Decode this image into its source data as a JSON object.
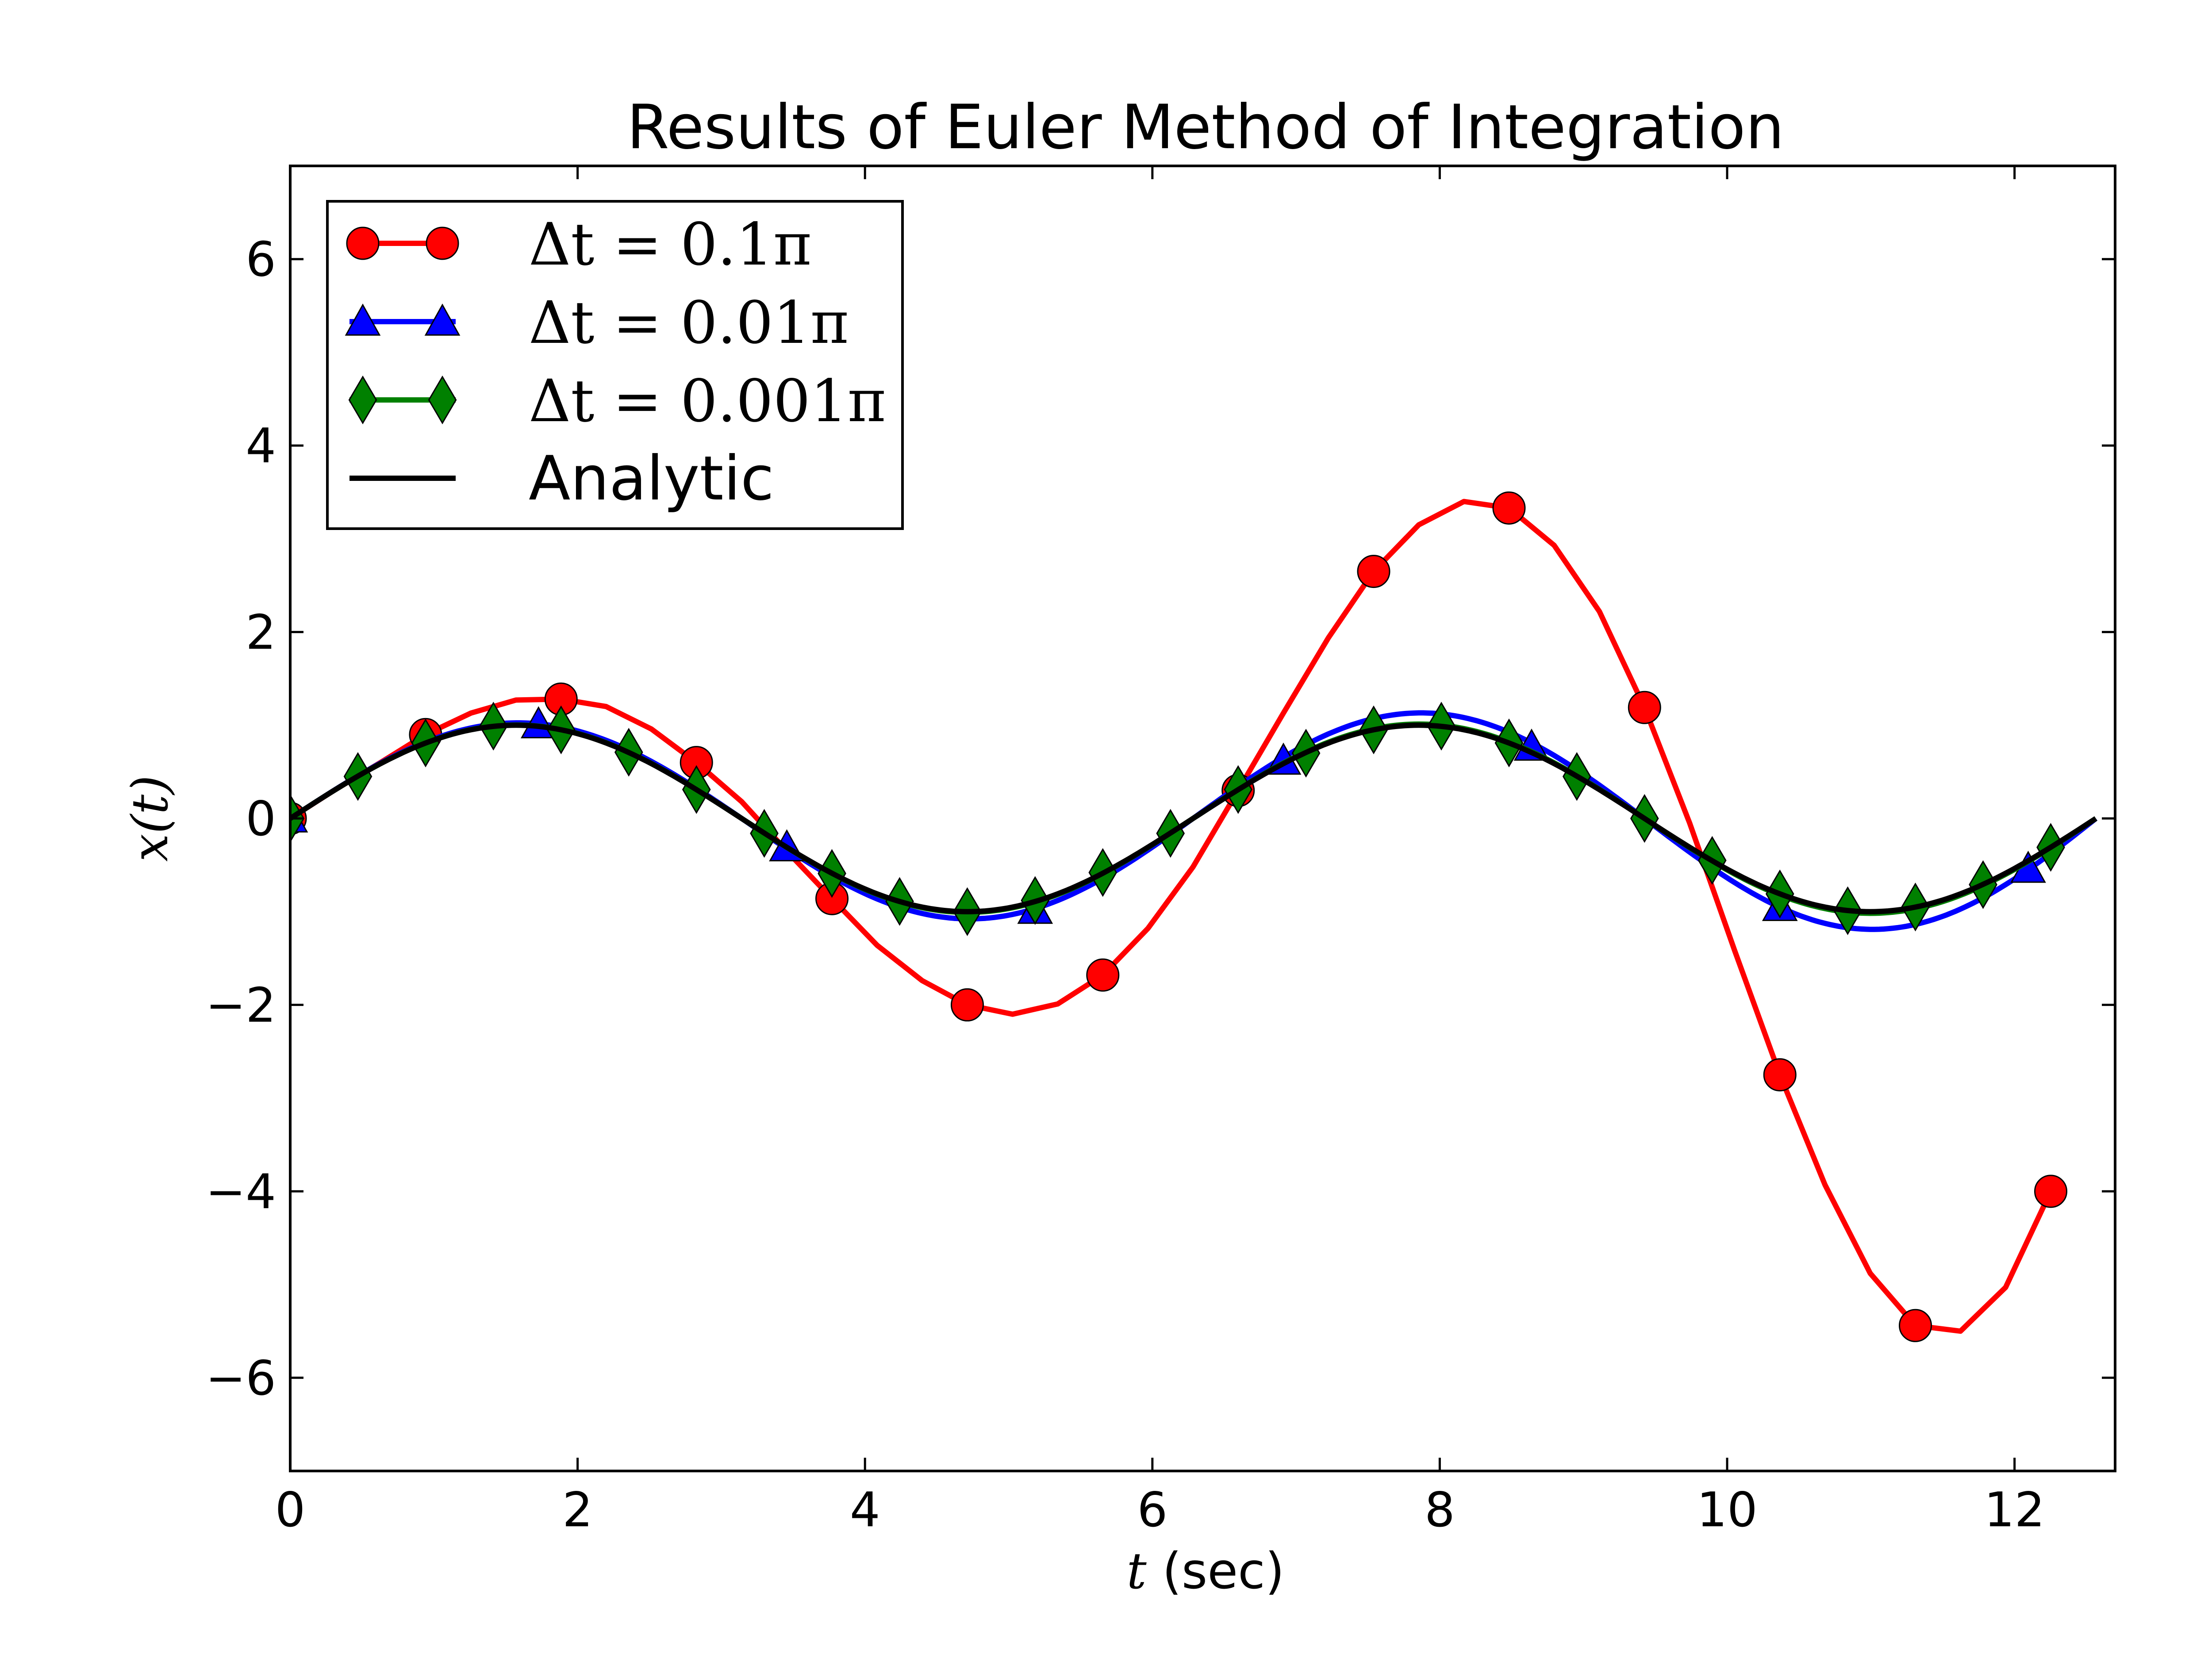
{
  "chart_data": {
    "type": "line",
    "title": "Results of Euler Method of Integration",
    "xlabel_var": "t",
    "xlabel_unit": " (sec)",
    "ylabel": "x(t)",
    "xlim": [
      0,
      12.7
    ],
    "ylim": [
      -7,
      7
    ],
    "xticks": [
      0,
      2,
      4,
      6,
      8,
      10,
      12
    ],
    "yticks": [
      -6,
      -4,
      -2,
      0,
      2,
      4,
      6
    ],
    "xtick_labels": [
      "0",
      "2",
      "4",
      "6",
      "8",
      "10",
      "12"
    ],
    "ytick_labels": [
      "−6",
      "−4",
      "−2",
      "0",
      "2",
      "4",
      "6"
    ],
    "legend_position": "top-left",
    "grid": false,
    "series": [
      {
        "name": "Δt = 0.1π",
        "color": "#ff0000",
        "marker": "circle",
        "line_x": [
          0,
          0.314,
          0.628,
          0.942,
          1.257,
          1.571,
          1.885,
          2.199,
          2.513,
          2.827,
          3.142,
          3.456,
          3.77,
          4.084,
          4.398,
          4.712,
          5.027,
          5.341,
          5.655,
          5.969,
          6.283,
          6.597,
          6.912,
          7.226,
          7.54,
          7.854,
          8.168,
          8.482,
          8.796,
          9.111,
          9.425,
          9.739,
          10.053,
          10.367,
          10.681,
          10.996,
          11.31,
          11.624,
          11.938,
          12.252
        ],
        "line_y": [
          0,
          0.31,
          0.6,
          0.9,
          1.13,
          1.27,
          1.28,
          1.2,
          0.96,
          0.6,
          0.18,
          -0.35,
          -0.86,
          -1.36,
          -1.74,
          -2.0,
          -2.1,
          -1.99,
          -1.68,
          -1.18,
          -0.52,
          0.3,
          1.13,
          1.94,
          2.65,
          3.15,
          3.4,
          3.33,
          2.93,
          2.22,
          1.19,
          -0.05,
          -1.42,
          -2.75,
          -3.93,
          -4.88,
          -5.44,
          -5.5,
          -5.03,
          -4.0
        ],
        "marker_x": [
          0,
          0.942,
          1.885,
          2.827,
          3.77,
          4.712,
          5.655,
          6.597,
          7.54,
          8.482,
          9.425,
          10.367,
          11.31,
          12.252
        ],
        "marker_y": [
          0,
          0.9,
          1.28,
          0.6,
          -0.86,
          -2.0,
          -1.68,
          0.3,
          2.65,
          3.33,
          1.19,
          -2.75,
          -5.44,
          -4.0
        ]
      },
      {
        "name": "Δt = 0.01π",
        "color": "#0000ff",
        "marker": "triangle",
        "amplitude_growth": 0.0158,
        "marker_x": [
          0,
          1.728,
          3.456,
          5.184,
          6.912,
          8.639,
          10.367,
          12.095
        ],
        "marker_y": [
          0,
          1.01,
          -0.31,
          -0.98,
          0.62,
          0.77,
          -0.95,
          -0.54
        ]
      },
      {
        "name": "Δt = 0.001π",
        "color": "#008000",
        "marker": "diamond",
        "amplitude_growth": 0.0016,
        "marker_x": [
          0,
          0.471,
          0.942,
          1.414,
          1.885,
          2.356,
          2.827,
          3.299,
          3.77,
          4.241,
          4.712,
          5.184,
          5.655,
          6.126,
          6.597,
          7.069,
          7.54,
          8.011,
          8.482,
          8.954,
          9.425,
          9.896,
          10.367,
          10.839,
          11.31,
          11.781,
          12.252
        ],
        "marker_y": [
          0,
          0.45,
          0.81,
          0.99,
          0.95,
          0.71,
          0.31,
          -0.16,
          -0.59,
          -0.89,
          -1.0,
          -0.88,
          -0.58,
          -0.16,
          0.31,
          0.7,
          0.95,
          0.99,
          0.81,
          0.45,
          0.0,
          -0.45,
          -0.81,
          -0.99,
          -0.95,
          -0.71,
          -0.31
        ]
      },
      {
        "name": "Analytic",
        "color": "#000000",
        "marker": "none",
        "function": "sin",
        "x_range": [
          0,
          12.566
        ]
      }
    ]
  }
}
